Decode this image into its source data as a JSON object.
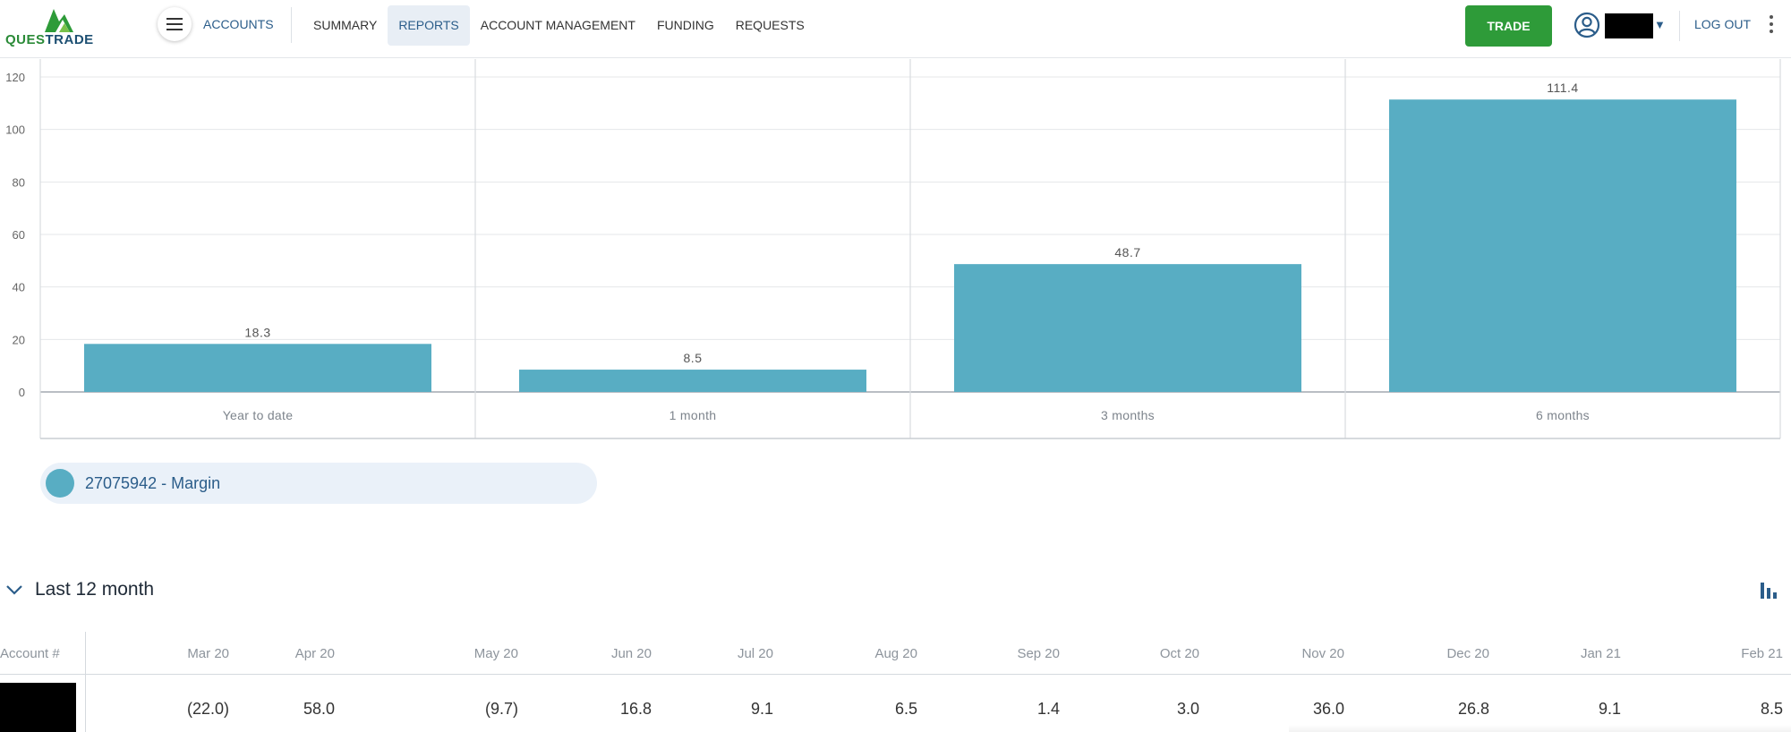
{
  "header": {
    "logo_text_part1": "QUES",
    "logo_text_part2": "TRADE",
    "accounts_label": "ACCOUNTS",
    "nav": [
      "SUMMARY",
      "REPORTS",
      "ACCOUNT MANAGEMENT",
      "FUNDING",
      "REQUESTS"
    ],
    "active_nav": "REPORTS",
    "trade_label": "TRADE",
    "logout_label": "LOG OUT"
  },
  "colors": {
    "bar": "#58adc3",
    "brand_green": "#2e9b39",
    "link_blue": "#2b5d8a"
  },
  "chart_data": {
    "type": "bar",
    "categories": [
      "Year to date",
      "1 month",
      "3 months",
      "6 months"
    ],
    "values": [
      18.3,
      8.5,
      48.7,
      111.4
    ],
    "data_labels": [
      "18.3",
      "8.5",
      "48.7",
      "111.4"
    ],
    "y_ticks": [
      0,
      20,
      40,
      60,
      80,
      100,
      120
    ],
    "ylim": [
      0,
      120
    ],
    "grid": true,
    "title": "",
    "xlabel": "",
    "ylabel": ""
  },
  "legend": {
    "label": "27075942 - Margin"
  },
  "section": {
    "title": "Last 12 month"
  },
  "table": {
    "account_header": "Account #",
    "months": [
      "Mar 20",
      "Apr 20",
      "May 20",
      "Jun 20",
      "Jul 20",
      "Aug 20",
      "Sep 20",
      "Oct 20",
      "Nov 20",
      "Dec 20",
      "Jan 21",
      "Feb 21"
    ],
    "values": [
      "(22.0)",
      "58.0",
      "(9.7)",
      "16.8",
      "9.1",
      "6.5",
      "1.4",
      "3.0",
      "36.0",
      "26.8",
      "9.1",
      "8.5"
    ]
  }
}
